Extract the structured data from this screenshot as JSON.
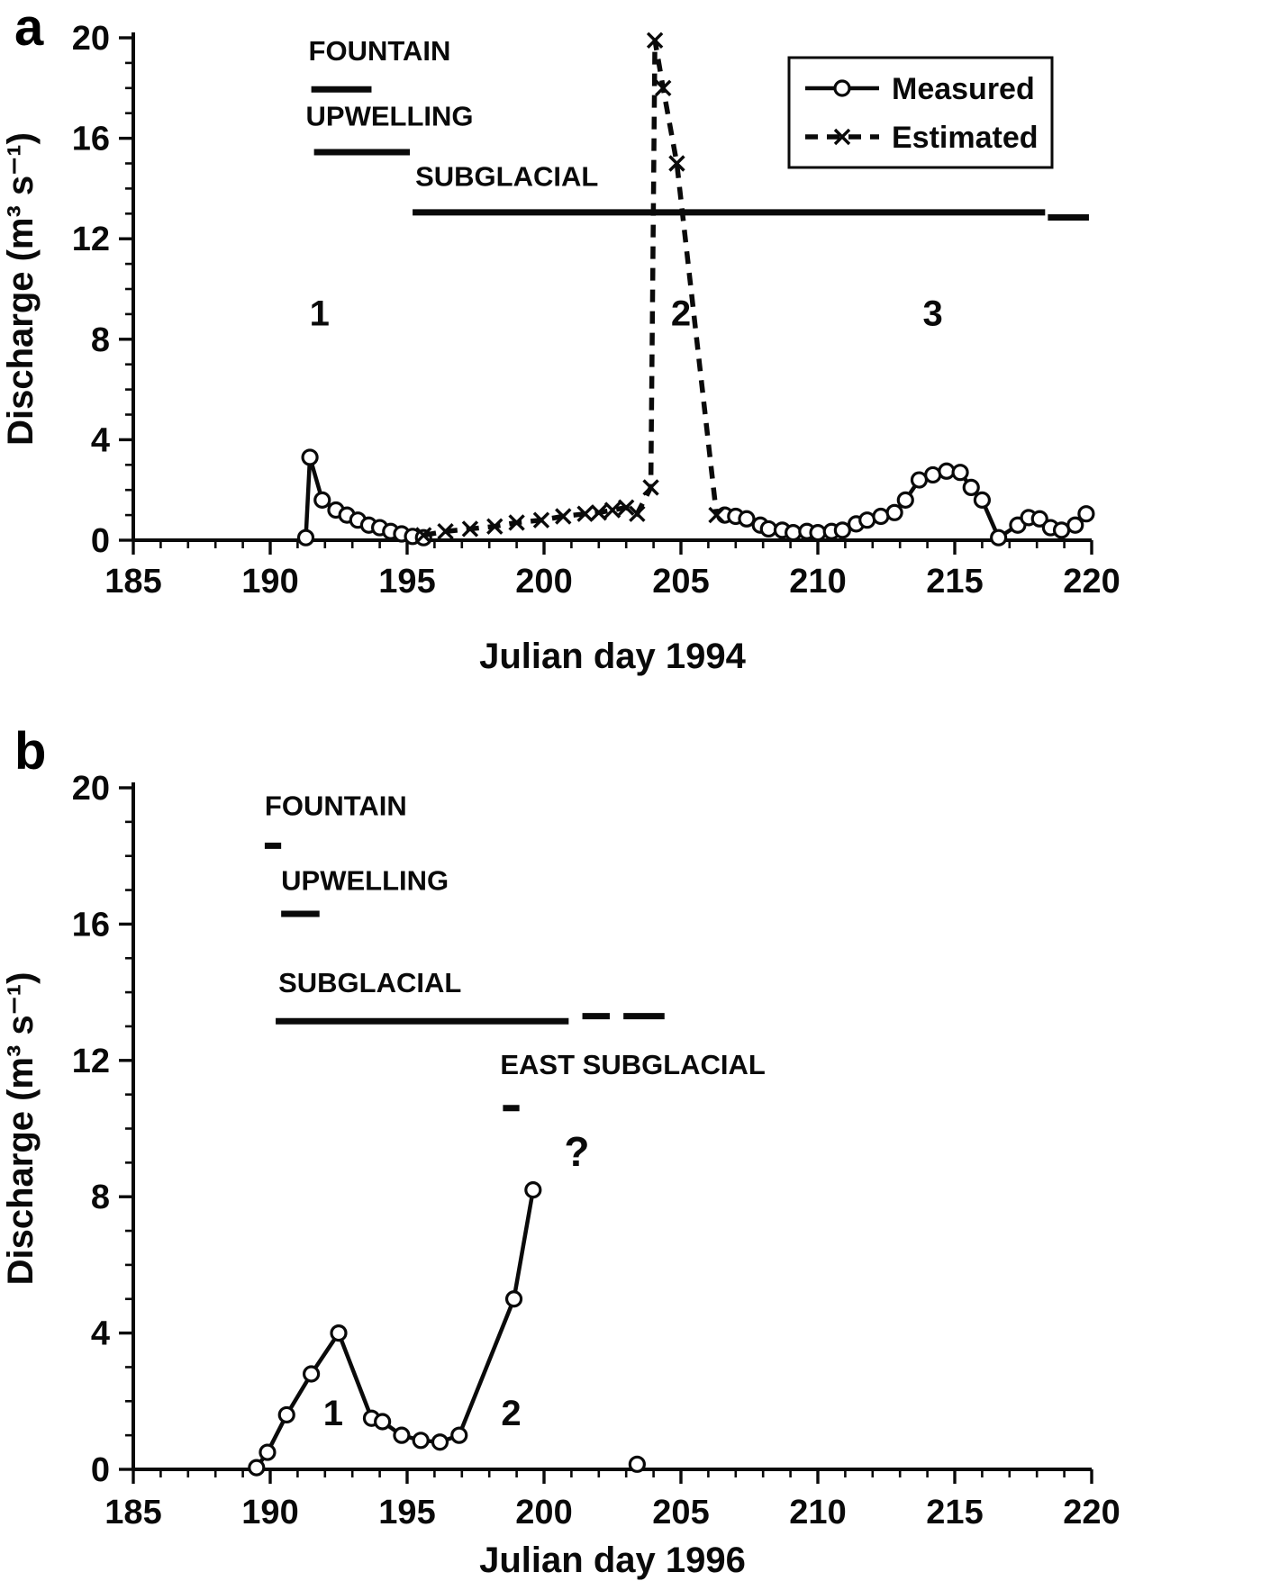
{
  "figure": {
    "panels": [
      {
        "label": "a"
      },
      {
        "label": "b"
      }
    ]
  },
  "chart_data": [
    {
      "id": "panel-a",
      "type": "line",
      "title": "",
      "xlabel": "Julian day 1994",
      "ylabel": "Discharge (m³ s⁻¹)",
      "xlim": [
        185,
        220
      ],
      "ylim": [
        0,
        20
      ],
      "xticks": [
        185,
        190,
        195,
        200,
        205,
        210,
        215,
        220
      ],
      "yticks": [
        0,
        4,
        8,
        12,
        16,
        20
      ],
      "x_minor_step": 1,
      "y_minor_step": 1,
      "legend": {
        "position": "top-right",
        "entries": [
          {
            "label": "Measured",
            "style": "measured"
          },
          {
            "label": "Estimated",
            "style": "estimated"
          }
        ]
      },
      "series": [
        {
          "name": "Measured",
          "style": "measured",
          "segments": [
            [
              [
                191.3,
                0.1
              ],
              [
                191.45,
                3.3
              ],
              [
                191.9,
                1.6
              ],
              [
                192.4,
                1.2
              ],
              [
                192.8,
                1.0
              ],
              [
                193.2,
                0.8
              ],
              [
                193.6,
                0.6
              ],
              [
                194.0,
                0.5
              ],
              [
                194.4,
                0.35
              ],
              [
                194.8,
                0.25
              ],
              [
                195.2,
                0.15
              ],
              [
                195.6,
                0.1
              ]
            ],
            [
              [
                206.6,
                1.0
              ],
              [
                207.0,
                0.95
              ],
              [
                207.4,
                0.85
              ],
              [
                207.9,
                0.6
              ],
              [
                208.2,
                0.45
              ],
              [
                208.7,
                0.4
              ],
              [
                209.1,
                0.3
              ],
              [
                209.6,
                0.35
              ],
              [
                210.0,
                0.3
              ],
              [
                210.5,
                0.35
              ],
              [
                210.9,
                0.4
              ],
              [
                211.4,
                0.65
              ],
              [
                211.8,
                0.8
              ],
              [
                212.3,
                0.95
              ],
              [
                212.8,
                1.1
              ],
              [
                213.2,
                1.6
              ],
              [
                213.7,
                2.4
              ],
              [
                214.2,
                2.6
              ],
              [
                214.7,
                2.75
              ],
              [
                215.2,
                2.7
              ],
              [
                215.6,
                2.1
              ],
              [
                216.0,
                1.6
              ],
              [
                216.6,
                0.1
              ],
              [
                217.3,
                0.6
              ],
              [
                217.7,
                0.9
              ],
              [
                218.1,
                0.85
              ],
              [
                218.5,
                0.5
              ],
              [
                218.9,
                0.4
              ],
              [
                219.4,
                0.6
              ],
              [
                219.8,
                1.05
              ]
            ]
          ]
        },
        {
          "name": "Estimated",
          "style": "estimated",
          "segments": [
            [
              [
                195.6,
                0.2
              ],
              [
                196.4,
                0.35
              ],
              [
                197.3,
                0.45
              ],
              [
                198.2,
                0.55
              ],
              [
                199.0,
                0.7
              ],
              [
                199.9,
                0.8
              ],
              [
                200.7,
                0.95
              ],
              [
                201.5,
                1.05
              ],
              [
                202.0,
                1.1
              ],
              [
                202.5,
                1.2
              ],
              [
                203.0,
                1.3
              ],
              [
                203.4,
                1.05
              ],
              [
                203.9,
                2.1
              ],
              [
                204.05,
                19.9
              ],
              [
                204.35,
                18.0
              ],
              [
                204.85,
                15.0
              ],
              [
                206.3,
                1.0
              ]
            ]
          ]
        }
      ],
      "annotations": {
        "labels": [
          {
            "text": "FOUNTAIN",
            "x": 191.4,
            "y": 19.1,
            "anchor": "start",
            "size": 31
          },
          {
            "text": "UPWELLING",
            "x": 191.3,
            "y": 16.5,
            "anchor": "start",
            "size": 31
          },
          {
            "text": "SUBGLACIAL",
            "x": 195.3,
            "y": 14.1,
            "anchor": "start",
            "size": 31
          },
          {
            "text": "1",
            "x": 191.8,
            "y": 8.55,
            "anchor": "middle",
            "size": 40
          },
          {
            "text": "2",
            "x": 205.0,
            "y": 8.55,
            "anchor": "middle",
            "size": 40
          },
          {
            "text": "3",
            "x": 214.2,
            "y": 8.55,
            "anchor": "middle",
            "size": 40
          }
        ],
        "bars": [
          {
            "x1": 191.5,
            "x2": 193.7,
            "y": 17.95
          },
          {
            "x1": 191.6,
            "x2": 195.1,
            "y": 15.45
          },
          {
            "x1": 195.2,
            "x2": 218.3,
            "y": 13.05
          },
          {
            "x1": 218.4,
            "x2": 219.9,
            "y": 12.85
          }
        ]
      }
    },
    {
      "id": "panel-b",
      "type": "line",
      "title": "",
      "xlabel": "Julian day 1996",
      "ylabel": "Discharge (m³ s⁻¹)",
      "xlim": [
        185,
        220
      ],
      "ylim": [
        0,
        20
      ],
      "xticks": [
        185,
        190,
        195,
        200,
        205,
        210,
        215,
        220
      ],
      "yticks": [
        0,
        4,
        8,
        12,
        16,
        20
      ],
      "x_minor_step": 1,
      "y_minor_step": 1,
      "series": [
        {
          "name": "Measured",
          "style": "measured",
          "segments": [
            [
              [
                189.5,
                0.05
              ],
              [
                189.9,
                0.5
              ],
              [
                190.6,
                1.6
              ],
              [
                191.5,
                2.8
              ],
              [
                192.5,
                4.0
              ],
              [
                193.7,
                1.5
              ],
              [
                194.1,
                1.4
              ],
              [
                194.8,
                1.0
              ],
              [
                195.5,
                0.85
              ],
              [
                196.2,
                0.8
              ],
              [
                196.9,
                1.0
              ],
              [
                198.9,
                5.0
              ],
              [
                199.6,
                8.2
              ]
            ],
            [
              [
                203.4,
                0.15
              ]
            ]
          ]
        }
      ],
      "annotations": {
        "labels": [
          {
            "text": "FOUNTAIN",
            "x": 189.8,
            "y": 19.2,
            "anchor": "start",
            "size": 31
          },
          {
            "text": "UPWELLING",
            "x": 190.4,
            "y": 17.0,
            "anchor": "start",
            "size": 31
          },
          {
            "text": "SUBGLACIAL",
            "x": 190.3,
            "y": 14.0,
            "anchor": "start",
            "size": 31
          },
          {
            "text": "EAST SUBGLACIAL",
            "x": 198.4,
            "y": 11.6,
            "anchor": "start",
            "size": 31
          },
          {
            "text": "1",
            "x": 192.3,
            "y": 1.3,
            "anchor": "middle",
            "size": 40
          },
          {
            "text": "2",
            "x": 198.8,
            "y": 1.3,
            "anchor": "middle",
            "size": 40
          },
          {
            "text": "?",
            "x": 201.2,
            "y": 8.9,
            "anchor": "middle",
            "size": 46
          }
        ],
        "bars": [
          {
            "x1": 189.8,
            "x2": 190.4,
            "y": 18.3
          },
          {
            "x1": 190.4,
            "x2": 191.8,
            "y": 16.3
          },
          {
            "x1": 190.2,
            "x2": 200.9,
            "y": 13.15
          },
          {
            "x1": 201.4,
            "x2": 202.4,
            "y": 13.3
          },
          {
            "x1": 202.9,
            "x2": 204.4,
            "y": 13.3
          },
          {
            "x1": 198.5,
            "x2": 199.1,
            "y": 10.6
          }
        ]
      }
    }
  ]
}
